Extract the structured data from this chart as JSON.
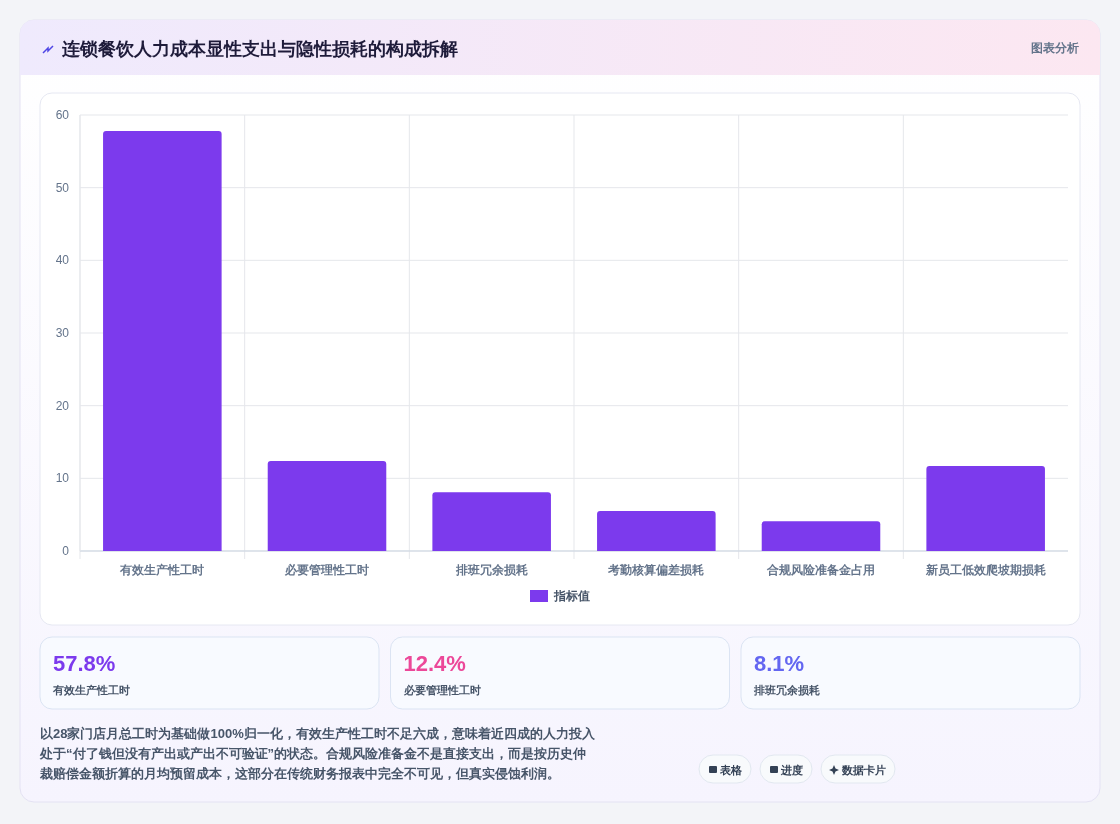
{
  "chart_data": {
    "type": "bar",
    "title": "连锁餐饮人力成本显性支出与隐性损耗的构成拆解",
    "categories": [
      "有效生产性工时",
      "必要管理性工时",
      "排班冗余损耗",
      "考勤核算偏差损耗",
      "合规风险准备金占用",
      "新员工低效爬坡期损耗"
    ],
    "series": [
      {
        "name": "指标值",
        "color": "#7c3aed",
        "values": [
          57.8,
          12.4,
          8.1,
          5.5,
          4.1,
          11.7
        ]
      }
    ],
    "ylim": [
      0,
      60
    ],
    "yticks": [
      0,
      10,
      20,
      30,
      40,
      50,
      60
    ],
    "grid": true,
    "legend": "bottom",
    "annotations": [
      "图表分析",
      "57.8%",
      "有效生产性工时",
      "12.4%",
      "必要管理性工时",
      "8.1%",
      "排班冗余损耗",
      "以28家门店月总工时为基础做100%归一化，有效生产性工时不足六成，意味着近四成的人力投入处于“付了钱但没有产出或产出不可验证”的状态。合规风险准备金不是直接支出，而是按历史仲裁赔偿金额折算的月均预留成本，这部分在传统财务报表中完全不可见，但真实侵蚀利润。",
      "表格",
      "进度",
      "数据卡片"
    ]
  }
}
